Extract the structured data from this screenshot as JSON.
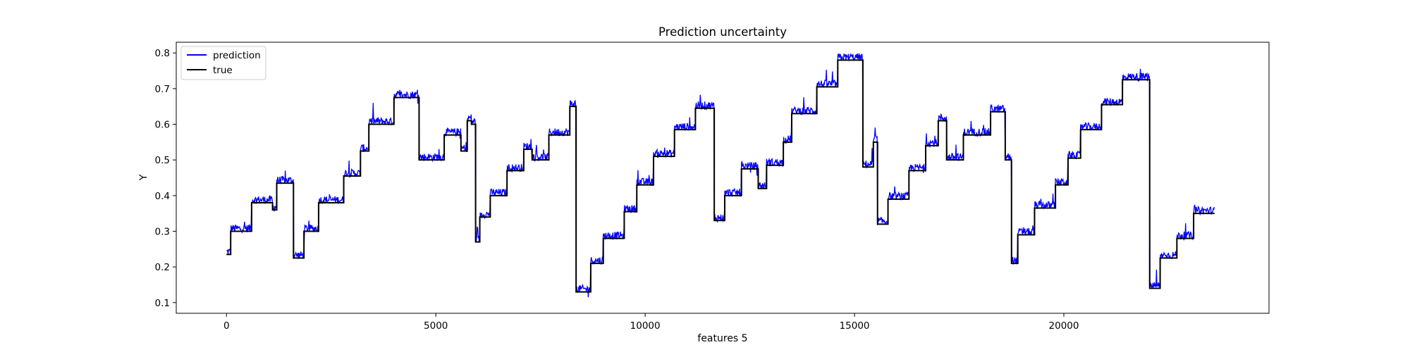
{
  "chart_data": {
    "type": "line",
    "title": "Prediction uncertainty",
    "xlabel": "features 5",
    "ylabel": "Y",
    "xlim": [
      -1200,
      24900
    ],
    "ylim": [
      0.07,
      0.83
    ],
    "xticks": [
      0,
      5000,
      10000,
      15000,
      20000
    ],
    "yticks": [
      0.1,
      0.2,
      0.3,
      0.4,
      0.5,
      0.6,
      0.7,
      0.8
    ],
    "grid": false,
    "legend_position": "top-left",
    "series": [
      {
        "name": "prediction",
        "color": "#0000ff",
        "style": "noisy steps around true"
      },
      {
        "name": "true",
        "color": "#000000",
        "style": "steps"
      }
    ],
    "true_steps": [
      [
        0,
        0.235
      ],
      [
        100,
        0.3
      ],
      [
        600,
        0.38
      ],
      [
        1100,
        0.36
      ],
      [
        1200,
        0.435
      ],
      [
        1600,
        0.225
      ],
      [
        1850,
        0.3
      ],
      [
        2200,
        0.38
      ],
      [
        2800,
        0.455
      ],
      [
        3200,
        0.525
      ],
      [
        3400,
        0.6
      ],
      [
        4000,
        0.675
      ],
      [
        4600,
        0.5
      ],
      [
        5200,
        0.57
      ],
      [
        5600,
        0.525
      ],
      [
        5750,
        0.61
      ],
      [
        5850,
        0.6
      ],
      [
        5950,
        0.27
      ],
      [
        6050,
        0.34
      ],
      [
        6300,
        0.4
      ],
      [
        6700,
        0.47
      ],
      [
        7100,
        0.53
      ],
      [
        7300,
        0.5
      ],
      [
        7700,
        0.57
      ],
      [
        8200,
        0.65
      ],
      [
        8350,
        0.13
      ],
      [
        8700,
        0.21
      ],
      [
        9000,
        0.28
      ],
      [
        9500,
        0.355
      ],
      [
        9800,
        0.43
      ],
      [
        10200,
        0.51
      ],
      [
        10700,
        0.585
      ],
      [
        11200,
        0.645
      ],
      [
        11650,
        0.33
      ],
      [
        11900,
        0.4
      ],
      [
        12300,
        0.475
      ],
      [
        12700,
        0.42
      ],
      [
        12900,
        0.485
      ],
      [
        13300,
        0.55
      ],
      [
        13500,
        0.63
      ],
      [
        14100,
        0.705
      ],
      [
        14600,
        0.78
      ],
      [
        15200,
        0.48
      ],
      [
        15450,
        0.55
      ],
      [
        15550,
        0.32
      ],
      [
        15800,
        0.39
      ],
      [
        16300,
        0.47
      ],
      [
        16700,
        0.54
      ],
      [
        17000,
        0.61
      ],
      [
        17200,
        0.5
      ],
      [
        17600,
        0.57
      ],
      [
        18250,
        0.635
      ],
      [
        18600,
        0.5
      ],
      [
        18750,
        0.21
      ],
      [
        18900,
        0.29
      ],
      [
        19300,
        0.365
      ],
      [
        19800,
        0.43
      ],
      [
        20100,
        0.505
      ],
      [
        20400,
        0.585
      ],
      [
        20900,
        0.655
      ],
      [
        21400,
        0.725
      ],
      [
        22050,
        0.14
      ],
      [
        22300,
        0.225
      ],
      [
        22700,
        0.28
      ],
      [
        23100,
        0.35
      ],
      [
        23600,
        0.35
      ]
    ]
  }
}
